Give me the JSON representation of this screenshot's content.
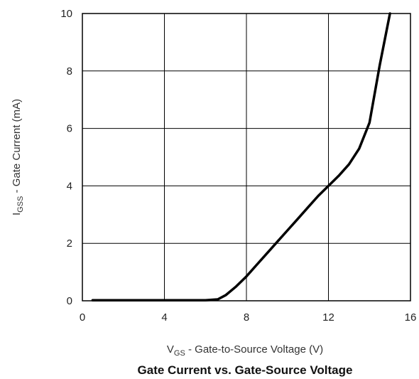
{
  "chart_data": {
    "type": "line",
    "title": "Gate Current vs. Gate-Source Voltage",
    "xlabel": {
      "main": "V",
      "sub": "GS",
      "rest": " - Gate-to-Source Voltage (V)"
    },
    "ylabel": {
      "main": "I",
      "sub": "GSS",
      "rest": " - Gate Current (mA)"
    },
    "xlim": [
      0,
      16
    ],
    "ylim": [
      0,
      10
    ],
    "xticks": [
      0,
      4,
      8,
      12,
      16
    ],
    "yticks": [
      0,
      2,
      4,
      6,
      8,
      10
    ],
    "grid": true,
    "series": [
      {
        "x": [
          0.5,
          2,
          4,
          6,
          6.6,
          7,
          7.5,
          8,
          8.5,
          9,
          9.5,
          10,
          10.5,
          11,
          11.5,
          12,
          12.5,
          13,
          13.5,
          14,
          14.5,
          15
        ],
        "y": [
          0.02,
          0.02,
          0.02,
          0.02,
          0.05,
          0.2,
          0.5,
          0.85,
          1.25,
          1.65,
          2.05,
          2.45,
          2.85,
          3.25,
          3.65,
          4.0,
          4.35,
          4.75,
          5.3,
          6.2,
          8.2,
          10.0
        ]
      }
    ]
  }
}
